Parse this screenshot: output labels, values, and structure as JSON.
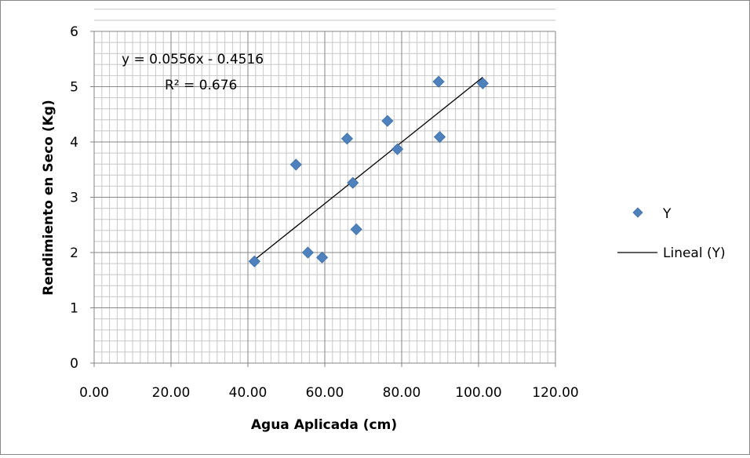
{
  "colors": {
    "marker": "#4f81bd",
    "trendline": "#000000",
    "grid_major": "#868686",
    "grid_minor": "#c8c8c8",
    "frame": "#888888"
  },
  "chart_data": {
    "type": "scatter",
    "xlabel": "Agua Aplicada (cm)",
    "ylabel": "Rendimiento en Seco (Kg)",
    "xlim": [
      0,
      120
    ],
    "ylim": [
      0,
      6
    ],
    "x_ticks": [
      "0.00",
      "20.00",
      "40.00",
      "60.00",
      "80.00",
      "100.00",
      "120.00"
    ],
    "y_ticks": [
      "0",
      "1",
      "2",
      "3",
      "4",
      "5",
      "6"
    ],
    "x_tick_values": [
      0,
      20,
      40,
      60,
      80,
      100,
      120
    ],
    "y_tick_values": [
      0,
      1,
      2,
      3,
      4,
      5,
      6
    ],
    "grid": true,
    "legend_position": "right",
    "series": [
      {
        "name": "Y",
        "marker": "diamond",
        "points": [
          {
            "x": 41.7,
            "y": 1.84
          },
          {
            "x": 52.5,
            "y": 3.59
          },
          {
            "x": 55.6,
            "y": 2.0
          },
          {
            "x": 59.3,
            "y": 1.91
          },
          {
            "x": 65.8,
            "y": 4.06
          },
          {
            "x": 67.3,
            "y": 3.26
          },
          {
            "x": 68.2,
            "y": 2.42
          },
          {
            "x": 76.3,
            "y": 4.38
          },
          {
            "x": 78.9,
            "y": 3.87
          },
          {
            "x": 89.6,
            "y": 5.09
          },
          {
            "x": 89.9,
            "y": 4.09
          },
          {
            "x": 101.1,
            "y": 5.06
          }
        ]
      }
    ],
    "trendline": {
      "name": "Lineal (Y)",
      "slope": 0.0556,
      "intercept": -0.4516,
      "x_range": [
        41.7,
        101.1
      ],
      "equation": "y = 0.0556x - 0.4516",
      "r_squared": "R² = 0.676"
    }
  }
}
